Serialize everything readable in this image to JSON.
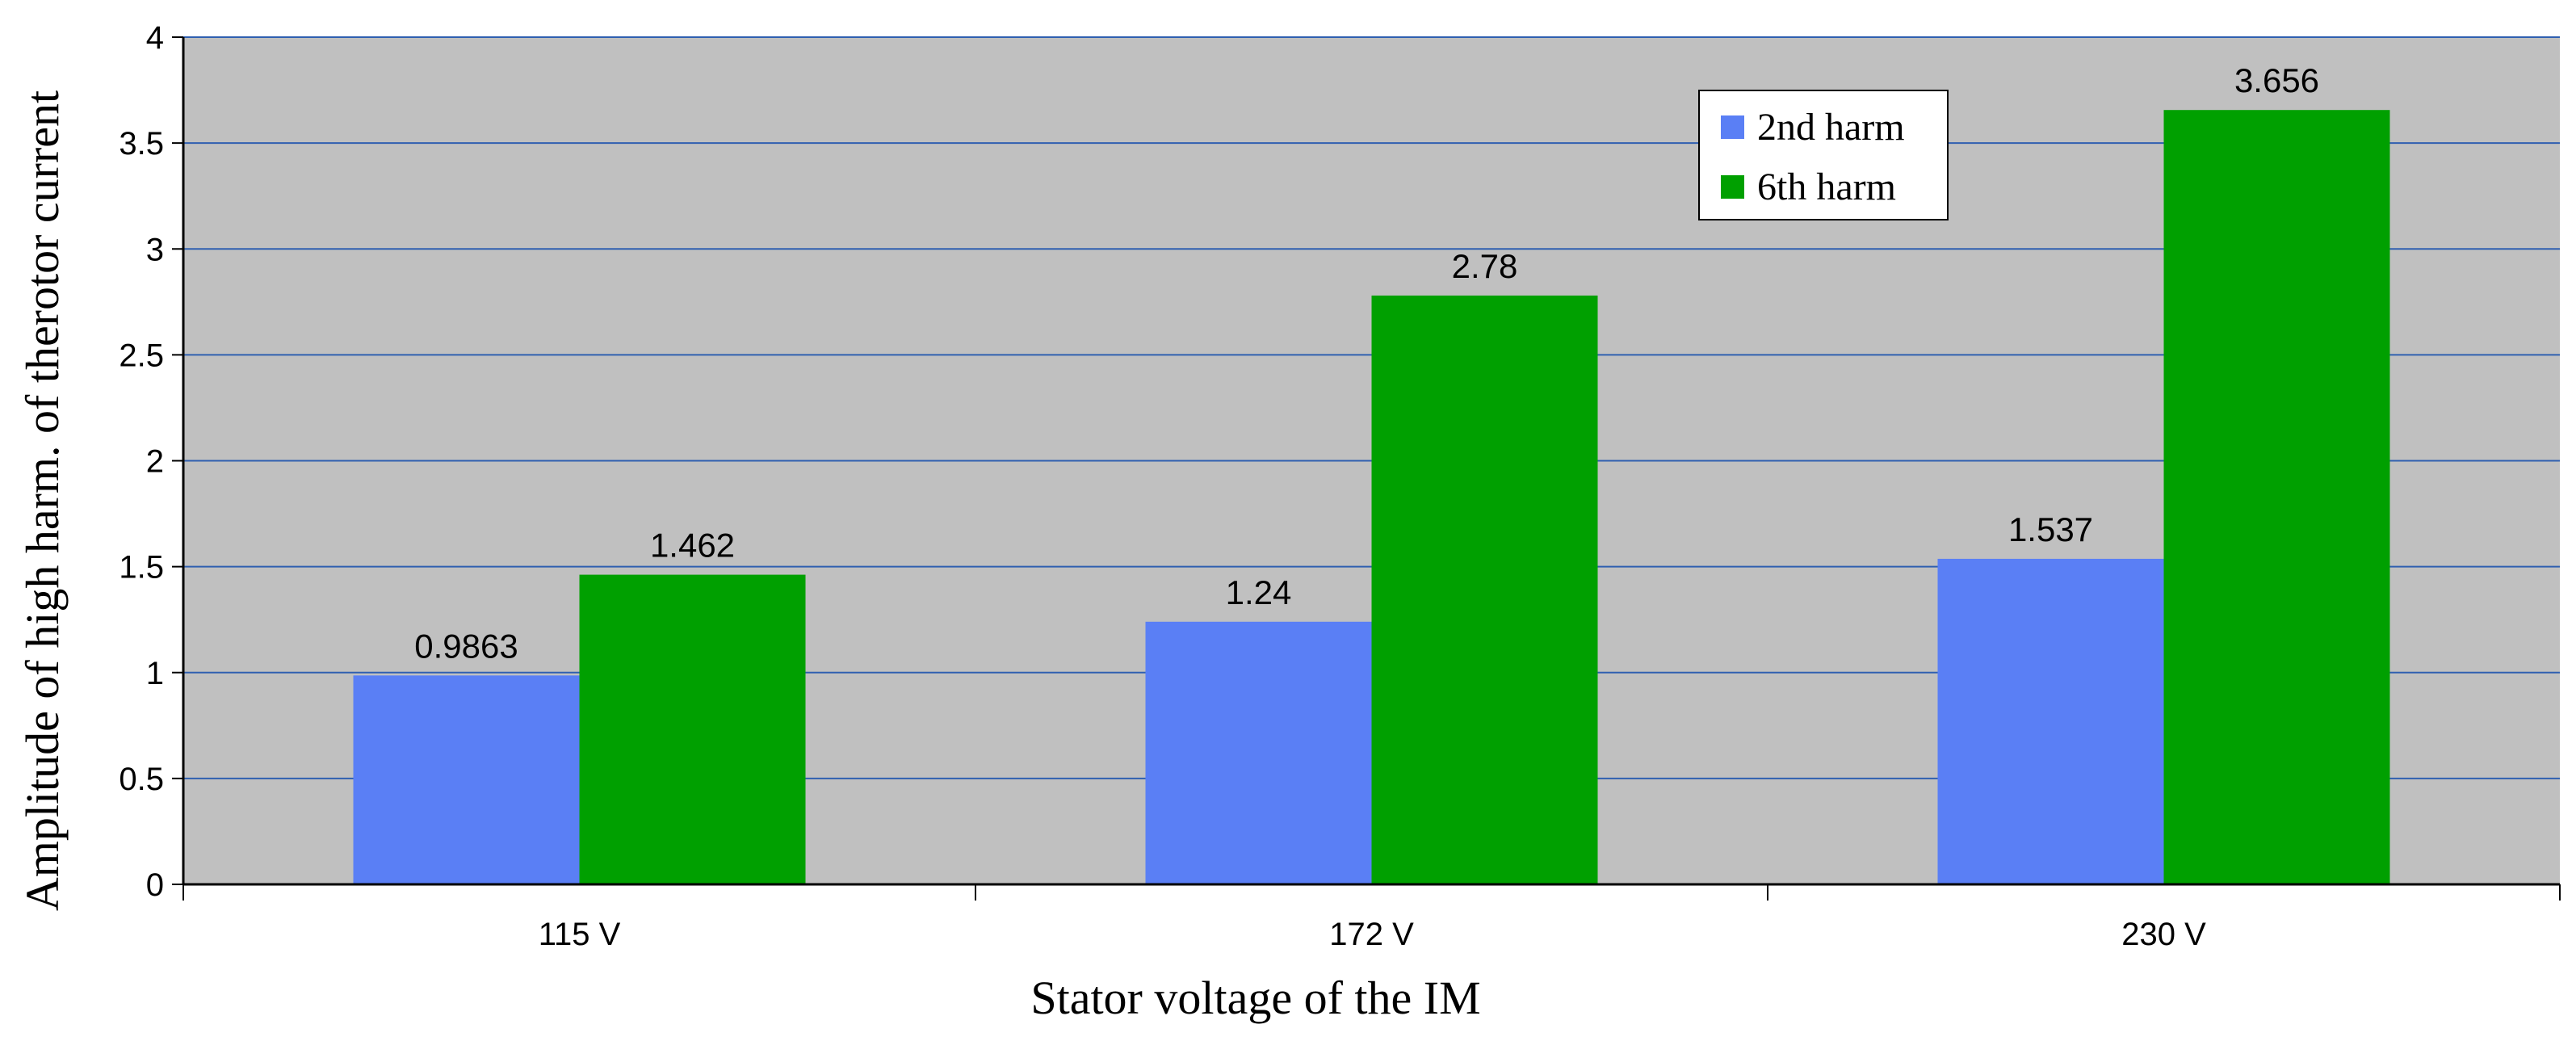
{
  "chart_data": {
    "type": "bar",
    "categories": [
      "115 V",
      "172 V",
      "230 V"
    ],
    "series": [
      {
        "name": "2nd harm",
        "values": [
          0.9863,
          1.24,
          1.537
        ],
        "labels": [
          "0.9863",
          "1.24",
          "1.537"
        ],
        "color": "#5a7ff5"
      },
      {
        "name": "6th harm",
        "values": [
          1.462,
          2.78,
          3.656
        ],
        "labels": [
          "1.462",
          "2.78",
          "3.656"
        ],
        "color": "#00a000"
      }
    ],
    "xlabel": "Stator voltage of the IM",
    "ylabel": "Amplitude of  high harm. of therotor current",
    "ylim": [
      0,
      4
    ],
    "yticks": [
      "0",
      "0.5",
      "1",
      "1.5",
      "2",
      "2.5",
      "3",
      "3.5",
      "4"
    ],
    "grid": true,
    "legend": "top-right",
    "colors": {
      "plot_background": "#c0c0c0",
      "grid": "#2f5fb0"
    }
  }
}
